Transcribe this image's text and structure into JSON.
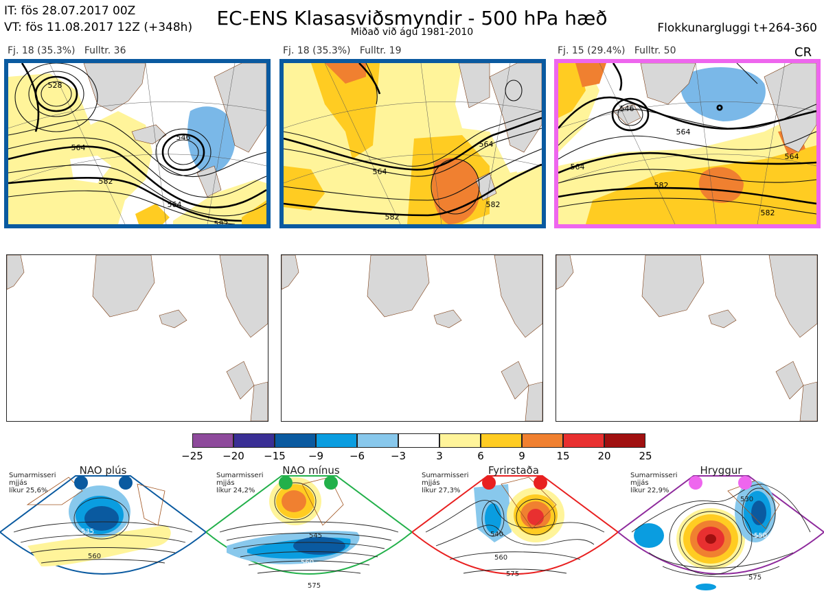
{
  "header": {
    "it_line": "IT: fös 28.07.2017 00Z",
    "vt_line": "VT: fös 11.08.2017 12Z  (+348h)",
    "title": "EC-ENS Klasasviðsmyndir - 500 hPa hæð",
    "subtitle": "Miðað við ágú 1981-2010",
    "window": "Flokkunargluggi t+264-360"
  },
  "panels": [
    {
      "label": "Fj. 18 (35.3%)   Fulltr. 36",
      "border_color": "#0a5aa0",
      "contours": [
        "528",
        "546",
        "564",
        "582",
        "564",
        "582"
      ],
      "tag": ""
    },
    {
      "label": "Fj. 18 (35.3%)   Fulltr. 19",
      "border_color": "#0a5aa0",
      "contours": [
        "564",
        "564",
        "582",
        "582"
      ],
      "tag": ""
    },
    {
      "label": "Fj. 15 (29.4%)   Fulltr. 50",
      "border_color": "#ee66ee",
      "contours": [
        "546",
        "564",
        "564",
        "582",
        "564",
        "582"
      ],
      "tag": "CR"
    }
  ],
  "colorbar": {
    "colors": [
      "#8e4a9c",
      "#3a2f95",
      "#0a5aa0",
      "#0a9de0",
      "#88c8ec",
      "#ffffff",
      "#fff49a",
      "#ffcc22",
      "#f08030",
      "#e83030",
      "#a01010"
    ],
    "ticks": [
      "−25",
      "−20",
      "−15",
      "−9",
      "−6",
      "−3",
      "3",
      "6",
      "9",
      "15",
      "20",
      "25"
    ]
  },
  "regimes": [
    {
      "name": "NAO plús",
      "season": "Sumarmisseri",
      "mean": "mjjás",
      "prob": "líkur 25,6%",
      "dot_color": "#0a5aa0",
      "frame_color": "#0a5aa0",
      "contours": [
        "535",
        "560"
      ]
    },
    {
      "name": "NAO mínus",
      "season": "Sumarmisseri",
      "mean": "mjjás",
      "prob": "líkur 24,2%",
      "dot_color": "#22b04a",
      "frame_color": "#22b04a",
      "contours": [
        "545",
        "560",
        "575"
      ]
    },
    {
      "name": "Fyrirstaða",
      "season": "Sumarmisseri",
      "mean": "mjjás",
      "prob": "líkur 27,3%",
      "dot_color": "#e82020",
      "frame_color": "#e82020",
      "contours": [
        "540",
        "560",
        "575"
      ]
    },
    {
      "name": "Hryggur",
      "season": "Sumarmisseri",
      "mean": "mjjás",
      "prob": "líkur 22,9%",
      "dot_color": "#ee66ee",
      "frame_color": "#8e2a9c",
      "contours": [
        "530",
        "550",
        "575"
      ]
    }
  ]
}
